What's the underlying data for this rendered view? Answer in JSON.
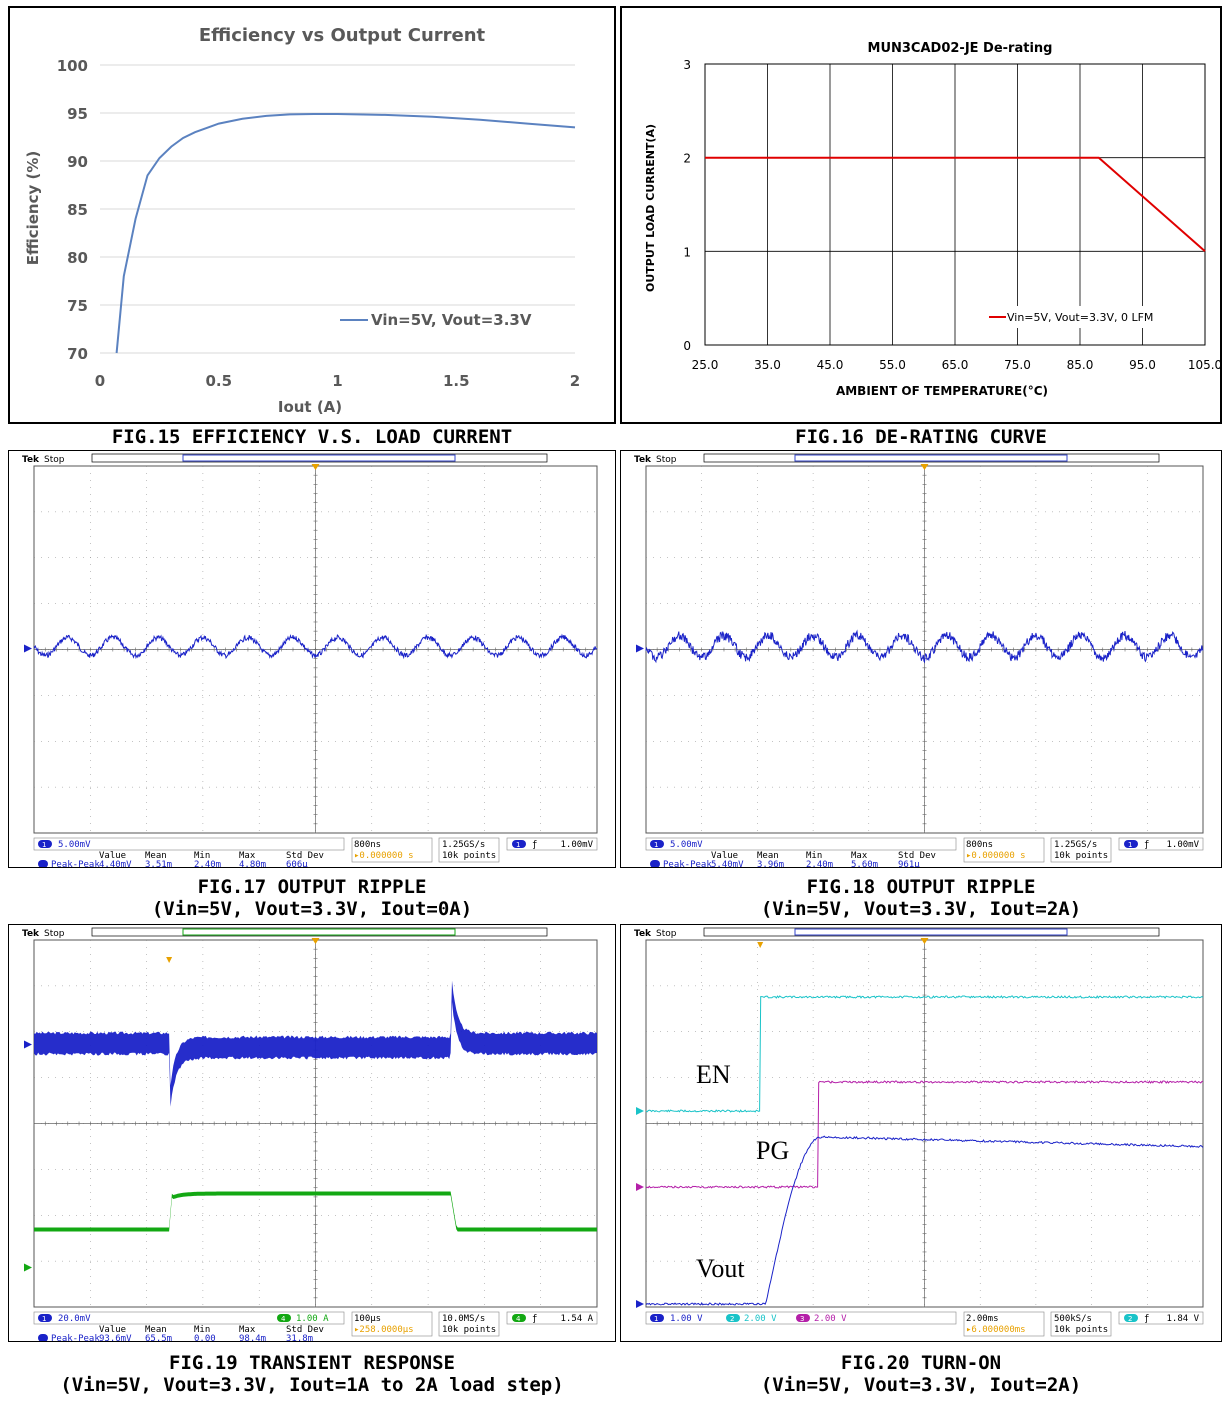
{
  "figures": {
    "fig15": {
      "caption": "FIG.15 EFFICIENCY V.S. LOAD CURRENT"
    },
    "fig16": {
      "caption": "FIG.16 DE-RATING CURVE"
    },
    "fig17": {
      "caption1": "FIG.17 OUTPUT RIPPLE",
      "caption2": "(Vin=5V, Vout=3.3V, Iout=0A)"
    },
    "fig18": {
      "caption1": "FIG.18 OUTPUT RIPPLE",
      "caption2": "(Vin=5V, Vout=3.3V, Iout=2A)"
    },
    "fig19": {
      "caption1": "FIG.19 TRANSIENT RESPONSE",
      "caption2": "(Vin=5V, Vout=3.3V, Iout=1A to 2A load step)"
    },
    "fig20": {
      "caption1": "FIG.20 TURN-ON",
      "caption2": "(Vin=5V, Vout=3.3V, Iout=2A)"
    }
  },
  "chart_data": [
    {
      "id": "fig15",
      "type": "line",
      "title": "Efficiency vs Output Current",
      "xlabel": "Iout (A)",
      "ylabel": "Efficiency (%)",
      "xlim": [
        0,
        2
      ],
      "ylim": [
        70,
        100
      ],
      "xticks": [
        "0",
        "0.5",
        "1",
        "1.5",
        "2"
      ],
      "yticks": [
        "70",
        "75",
        "80",
        "85",
        "90",
        "95",
        "100"
      ],
      "grid": "horizontal",
      "legend_position": "right",
      "series": [
        {
          "name": "Vin=5V, Vout=3.3V",
          "color": "#5b82c0",
          "x": [
            0.07,
            0.1,
            0.15,
            0.2,
            0.25,
            0.3,
            0.35,
            0.4,
            0.5,
            0.6,
            0.7,
            0.8,
            0.9,
            1.0,
            1.2,
            1.4,
            1.6,
            1.8,
            2.0
          ],
          "y": [
            70,
            78,
            84,
            88.5,
            90.3,
            91.5,
            92.4,
            93.0,
            93.9,
            94.4,
            94.7,
            94.85,
            94.9,
            94.9,
            94.8,
            94.6,
            94.3,
            93.9,
            93.5
          ]
        }
      ]
    },
    {
      "id": "fig16",
      "type": "line",
      "title": "MUN3CAD02-JE De-rating",
      "xlabel": "AMBIENT OF TEMPERATURE(°C)",
      "ylabel": "OUTPUT LOAD CURRENT(A)",
      "xlim": [
        25,
        105
      ],
      "ylim": [
        0,
        3
      ],
      "xticks": [
        "25.0",
        "35.0",
        "45.0",
        "55.0",
        "65.0",
        "75.0",
        "85.0",
        "95.0",
        "105.0"
      ],
      "yticks": [
        "0",
        "1",
        "2",
        "3"
      ],
      "grid": "both",
      "legend_position": "bottom-right",
      "series": [
        {
          "name": "Vin=5V, Vout=3.3V, 0 LFM",
          "color": "#e00000",
          "x": [
            25,
            88,
            105
          ],
          "y": [
            2,
            2,
            1
          ]
        }
      ]
    }
  ],
  "scopes": {
    "brand": "Tek",
    "status": "Stop",
    "fig17": {
      "ch1": "5.00mV",
      "time": "800ns",
      "rate1": "1.25GS/s",
      "rate2": "10k points",
      "trig_ch": "1",
      "trig_val": "1.00mV",
      "delay": "0.000000 s",
      "meas_headers": [
        "Value",
        "Mean",
        "Min",
        "Max",
        "Std Dev"
      ],
      "meas_label": "Peak-Peak",
      "meas_vals": [
        "4.40mV",
        "3.51m",
        "2.40m",
        "4.80m",
        "606µ"
      ]
    },
    "fig18": {
      "ch1": "5.00mV",
      "time": "800ns",
      "rate1": "1.25GS/s",
      "rate2": "10k points",
      "trig_ch": "1",
      "trig_val": "1.00mV",
      "delay": "0.000000 s",
      "meas_headers": [
        "Value",
        "Mean",
        "Min",
        "Max",
        "Std Dev"
      ],
      "meas_label": "Peak-Peak",
      "meas_vals": [
        "5.40mV",
        "3.96m",
        "2.40m",
        "5.60m",
        "961µ"
      ]
    },
    "fig19": {
      "ch1": "20.0mV",
      "ch4": "1.00 A",
      "ch4_num": "4",
      "time": "100µs",
      "rate1": "10.0MS/s",
      "rate2": "10k points",
      "trig_ch": "4",
      "trig_val": "1.54 A",
      "delay": "258.0000µs",
      "meas_headers": [
        "Value",
        "Mean",
        "Min",
        "Max",
        "Std Dev"
      ],
      "meas_label": "Peak-Peak",
      "meas_vals": [
        "93.6mV",
        "65.5m",
        "0.00",
        "98.4m",
        "31.8m"
      ]
    },
    "fig20": {
      "ch1": "1.00 V",
      "ch2": "2.00 V",
      "ch3": "2.00 V",
      "time": "2.00ms",
      "rate1": "500kS/s",
      "rate2": "10k points",
      "trig_ch": "2",
      "trig_val": "1.84 V",
      "delay": "6.000000ms",
      "labels": {
        "en": "EN",
        "pg": "PG",
        "vout": "Vout"
      }
    }
  },
  "colors": {
    "ch1": "#1a22c8",
    "ch2": "#19c3c8",
    "ch3": "#b41fa8",
    "ch4": "#13a813",
    "trigger": "#e8a100"
  }
}
